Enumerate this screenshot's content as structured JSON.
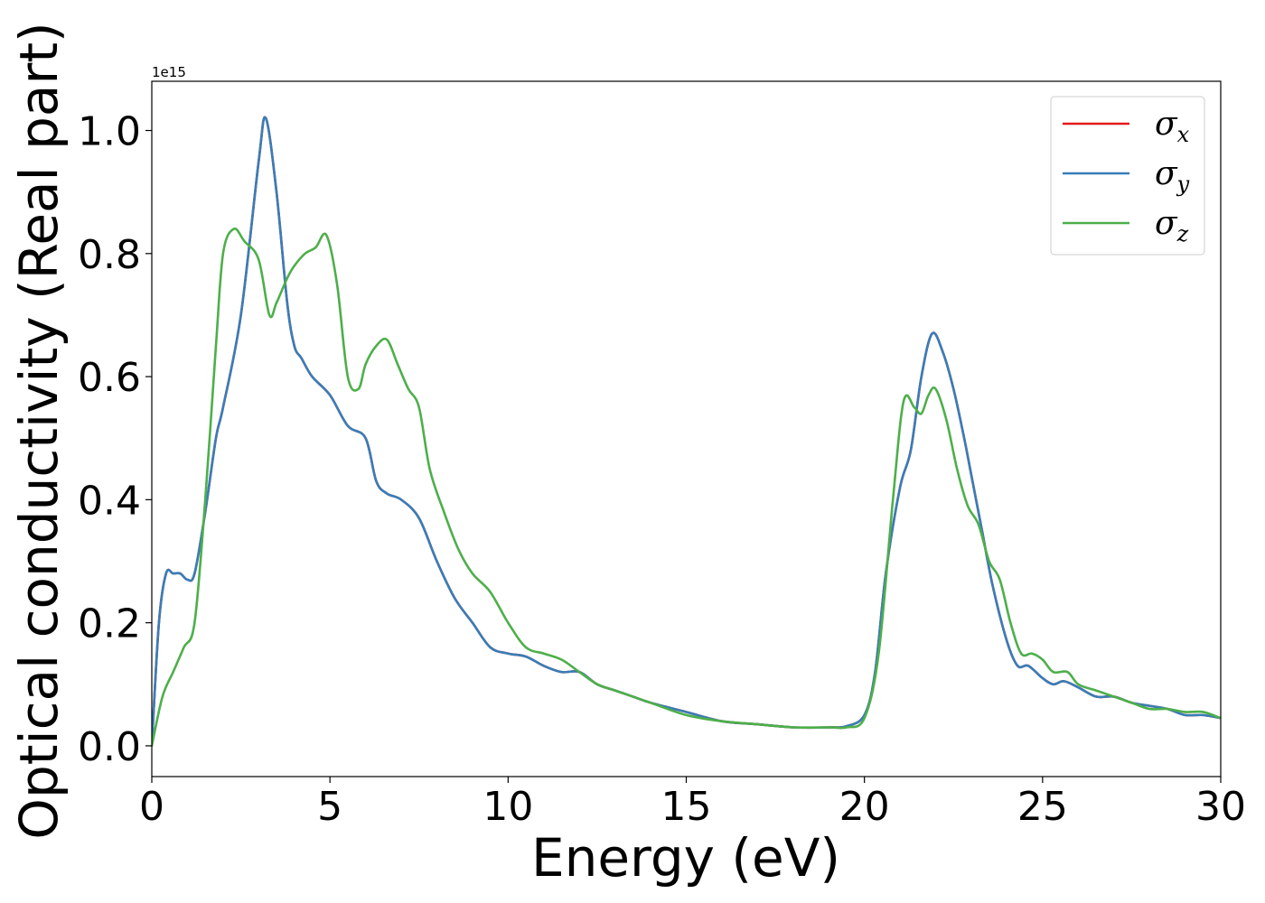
{
  "chart_data": {
    "type": "line",
    "xlabel": "Energy (eV)",
    "ylabel": "Optical conductivity (Real part)",
    "y_offset_text": "1e15",
    "xlim": [
      0,
      30
    ],
    "ylim": [
      -0.05,
      1.08
    ],
    "x_ticks": [
      "0",
      "5",
      "10",
      "15",
      "20",
      "25",
      "30"
    ],
    "y_ticks": [
      "0.0",
      "0.2",
      "0.4",
      "0.6",
      "0.8",
      "1.0"
    ],
    "grid": false,
    "legend_position": "top-right",
    "series": [
      {
        "name": "σx",
        "base": "σ",
        "sub": "x",
        "color": "#e41a1c",
        "x": [
          0,
          0.2,
          0.4,
          0.6,
          0.8,
          1.0,
          1.2,
          1.5,
          1.8,
          2.0,
          2.5,
          3.0,
          3.2,
          3.5,
          3.8,
          4.0,
          4.2,
          4.5,
          5.0,
          5.5,
          6.0,
          6.3,
          6.6,
          7.0,
          7.5,
          8.0,
          8.5,
          9.0,
          9.5,
          10.0,
          10.5,
          11.0,
          11.5,
          12.0,
          12.5,
          13.0,
          13.5,
          14.0,
          15.0,
          16.0,
          17.0,
          18.0,
          19.0,
          19.5,
          20.0,
          20.3,
          20.6,
          21.0,
          21.3,
          21.6,
          21.9,
          22.2,
          22.5,
          22.8,
          23.0,
          23.3,
          23.6,
          24.0,
          24.3,
          24.6,
          25.0,
          25.3,
          25.6,
          26.0,
          26.5,
          27.0,
          27.5,
          28.0,
          28.5,
          29.0,
          29.5,
          30.0
        ],
        "y": [
          0.0,
          0.2,
          0.28,
          0.28,
          0.28,
          0.27,
          0.28,
          0.38,
          0.5,
          0.55,
          0.7,
          0.95,
          1.02,
          0.9,
          0.72,
          0.65,
          0.63,
          0.6,
          0.57,
          0.52,
          0.5,
          0.43,
          0.41,
          0.4,
          0.37,
          0.3,
          0.24,
          0.2,
          0.16,
          0.15,
          0.145,
          0.13,
          0.12,
          0.12,
          0.1,
          0.09,
          0.08,
          0.07,
          0.055,
          0.04,
          0.035,
          0.03,
          0.03,
          0.032,
          0.05,
          0.12,
          0.28,
          0.42,
          0.48,
          0.6,
          0.67,
          0.64,
          0.58,
          0.5,
          0.44,
          0.35,
          0.26,
          0.17,
          0.13,
          0.13,
          0.11,
          0.1,
          0.105,
          0.095,
          0.08,
          0.08,
          0.07,
          0.065,
          0.06,
          0.05,
          0.05,
          0.045
        ]
      },
      {
        "name": "σy",
        "base": "σ",
        "sub": "y",
        "color": "#377eb8",
        "x": [
          0,
          0.2,
          0.4,
          0.6,
          0.8,
          1.0,
          1.2,
          1.5,
          1.8,
          2.0,
          2.5,
          3.0,
          3.2,
          3.5,
          3.8,
          4.0,
          4.2,
          4.5,
          5.0,
          5.5,
          6.0,
          6.3,
          6.6,
          7.0,
          7.5,
          8.0,
          8.5,
          9.0,
          9.5,
          10.0,
          10.5,
          11.0,
          11.5,
          12.0,
          12.5,
          13.0,
          13.5,
          14.0,
          15.0,
          16.0,
          17.0,
          18.0,
          19.0,
          19.5,
          20.0,
          20.3,
          20.6,
          21.0,
          21.3,
          21.6,
          21.9,
          22.2,
          22.5,
          22.8,
          23.0,
          23.3,
          23.6,
          24.0,
          24.3,
          24.6,
          25.0,
          25.3,
          25.6,
          26.0,
          26.5,
          27.0,
          27.5,
          28.0,
          28.5,
          29.0,
          29.5,
          30.0
        ],
        "y": [
          0.0,
          0.2,
          0.28,
          0.28,
          0.28,
          0.27,
          0.28,
          0.38,
          0.5,
          0.55,
          0.7,
          0.95,
          1.02,
          0.9,
          0.72,
          0.65,
          0.63,
          0.6,
          0.57,
          0.52,
          0.5,
          0.43,
          0.41,
          0.4,
          0.37,
          0.3,
          0.24,
          0.2,
          0.16,
          0.15,
          0.145,
          0.13,
          0.12,
          0.12,
          0.1,
          0.09,
          0.08,
          0.07,
          0.055,
          0.04,
          0.035,
          0.03,
          0.03,
          0.032,
          0.05,
          0.12,
          0.28,
          0.42,
          0.48,
          0.6,
          0.67,
          0.64,
          0.58,
          0.5,
          0.44,
          0.35,
          0.26,
          0.17,
          0.13,
          0.13,
          0.11,
          0.1,
          0.105,
          0.095,
          0.08,
          0.08,
          0.07,
          0.065,
          0.06,
          0.05,
          0.05,
          0.045
        ]
      },
      {
        "name": "σz",
        "base": "σ",
        "sub": "z",
        "color": "#4daf4a",
        "x": [
          0,
          0.3,
          0.6,
          0.9,
          1.2,
          1.5,
          1.8,
          2.0,
          2.3,
          2.6,
          3.0,
          3.3,
          3.5,
          3.8,
          4.0,
          4.3,
          4.6,
          4.9,
          5.2,
          5.5,
          5.8,
          6.0,
          6.3,
          6.6,
          6.9,
          7.2,
          7.5,
          7.8,
          8.2,
          8.6,
          9.0,
          9.5,
          10.0,
          10.5,
          11.0,
          11.5,
          12.0,
          12.5,
          13.0,
          14.0,
          15.0,
          16.0,
          17.0,
          18.0,
          19.0,
          19.5,
          20.0,
          20.4,
          20.8,
          21.1,
          21.4,
          21.6,
          21.8,
          22.0,
          22.3,
          22.6,
          22.9,
          23.2,
          23.5,
          23.8,
          24.1,
          24.4,
          24.7,
          25.0,
          25.3,
          25.7,
          26.0,
          26.5,
          27.0,
          27.5,
          28.0,
          28.5,
          29.0,
          29.5,
          30.0
        ],
        "y": [
          0.0,
          0.08,
          0.12,
          0.16,
          0.2,
          0.4,
          0.65,
          0.8,
          0.84,
          0.82,
          0.79,
          0.7,
          0.72,
          0.76,
          0.78,
          0.8,
          0.81,
          0.83,
          0.75,
          0.6,
          0.58,
          0.62,
          0.65,
          0.66,
          0.62,
          0.58,
          0.55,
          0.45,
          0.38,
          0.32,
          0.28,
          0.25,
          0.2,
          0.16,
          0.15,
          0.14,
          0.12,
          0.1,
          0.09,
          0.07,
          0.05,
          0.04,
          0.035,
          0.03,
          0.03,
          0.03,
          0.045,
          0.15,
          0.4,
          0.56,
          0.55,
          0.54,
          0.57,
          0.58,
          0.53,
          0.45,
          0.39,
          0.36,
          0.3,
          0.27,
          0.2,
          0.15,
          0.15,
          0.14,
          0.12,
          0.12,
          0.1,
          0.09,
          0.08,
          0.07,
          0.06,
          0.06,
          0.055,
          0.055,
          0.045
        ]
      }
    ]
  }
}
